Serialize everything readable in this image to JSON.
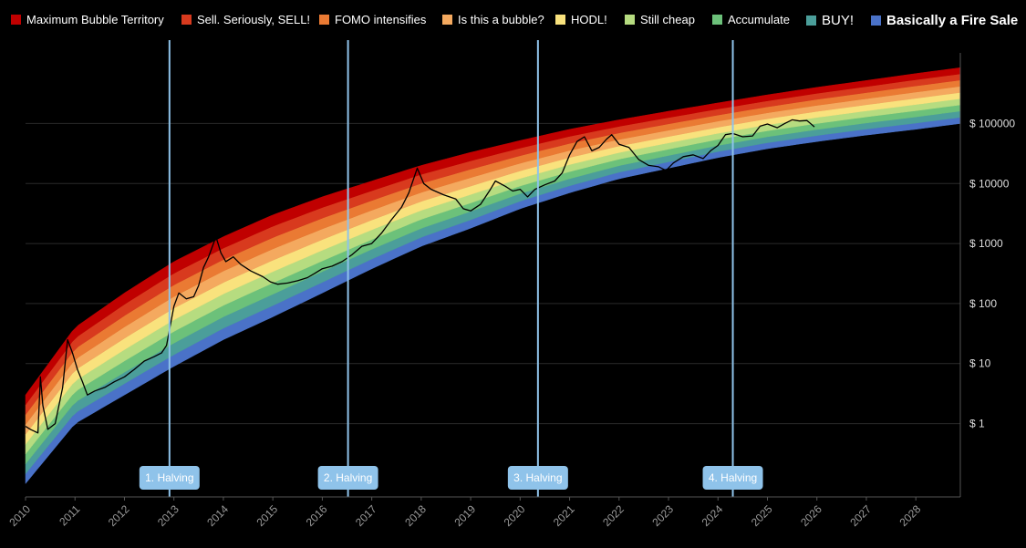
{
  "legend": [
    {
      "label": "Maximum Bubble Territory",
      "color": "#c00000"
    },
    {
      "label": "Sell. Seriously, SELL!",
      "color": "#d83a1e"
    },
    {
      "label": "FOMO intensifies",
      "color": "#ea7a33"
    },
    {
      "label": "Is this a bubble?",
      "color": "#f4a95f"
    },
    {
      "label": "HODL!",
      "color": "#f9e27d"
    },
    {
      "label": "Still cheap",
      "color": "#b6dc80"
    },
    {
      "label": "Accumulate",
      "color": "#6cc17a"
    },
    {
      "label": "BUY!",
      "color": "#4b9e9a"
    },
    {
      "label": "Basically a Fire Sale",
      "color": "#4a72c8"
    }
  ],
  "chart_data": {
    "type": "area",
    "y_scale": "log",
    "y_ticks": [
      {
        "value": 1,
        "label": "$ 1"
      },
      {
        "value": 10,
        "label": "$ 10"
      },
      {
        "value": 100,
        "label": "$ 100"
      },
      {
        "value": 1000,
        "label": "$ 1000"
      },
      {
        "value": 10000,
        "label": "$ 10000"
      },
      {
        "value": 100000,
        "label": "$ 100000"
      }
    ],
    "x_ticks": [
      "2010",
      "2011",
      "2012",
      "2013",
      "2014",
      "2015",
      "2016",
      "2017",
      "2018",
      "2019",
      "2020",
      "2021",
      "2022",
      "2023",
      "2024",
      "2025",
      "2026",
      "2027",
      "2028"
    ],
    "x_range": [
      2010,
      2028.9
    ],
    "y_range": [
      0.06,
      1500000
    ],
    "bands": [
      {
        "name": "Basically a Fire Sale",
        "color": "#4a72c8"
      },
      {
        "name": "BUY!",
        "color": "#4b9e9a"
      },
      {
        "name": "Accumulate",
        "color": "#6cc17a"
      },
      {
        "name": "Still cheap",
        "color": "#b6dc80"
      },
      {
        "name": "HODL!",
        "color": "#f9e27d"
      },
      {
        "name": "Is this a bubble?",
        "color": "#f4a95f"
      },
      {
        "name": "FOMO intensifies",
        "color": "#ea7a33"
      },
      {
        "name": "Sell. Seriously, SELL!",
        "color": "#d83a1e"
      },
      {
        "name": "Maximum Bubble Territory",
        "color": "#c00000"
      }
    ],
    "band_bottom_points": [
      [
        2010.0,
        0.1
      ],
      [
        2011.0,
        1.0
      ],
      [
        2012.0,
        3.0
      ],
      [
        2013.0,
        9.0
      ],
      [
        2014.0,
        25
      ],
      [
        2015.0,
        60
      ],
      [
        2016.0,
        150
      ],
      [
        2017.0,
        380
      ],
      [
        2018.0,
        900
      ],
      [
        2019.0,
        1800
      ],
      [
        2020.0,
        3800
      ],
      [
        2021.0,
        7000
      ],
      [
        2022.0,
        12000
      ],
      [
        2023.0,
        18000
      ],
      [
        2024.0,
        27000
      ],
      [
        2025.0,
        38000
      ],
      [
        2026.0,
        50000
      ],
      [
        2027.0,
        64000
      ],
      [
        2028.0,
        80000
      ],
      [
        2028.9,
        100000
      ]
    ],
    "band_top_points": [
      [
        2010.0,
        3.0
      ],
      [
        2011.0,
        40
      ],
      [
        2012.0,
        150
      ],
      [
        2013.0,
        500
      ],
      [
        2014.0,
        1300
      ],
      [
        2015.0,
        3000
      ],
      [
        2016.0,
        6000
      ],
      [
        2017.0,
        11000
      ],
      [
        2018.0,
        20000
      ],
      [
        2019.0,
        33000
      ],
      [
        2020.0,
        52000
      ],
      [
        2021.0,
        80000
      ],
      [
        2022.0,
        115000
      ],
      [
        2023.0,
        160000
      ],
      [
        2024.0,
        220000
      ],
      [
        2025.0,
        300000
      ],
      [
        2026.0,
        400000
      ],
      [
        2027.0,
        520000
      ],
      [
        2028.0,
        680000
      ],
      [
        2028.9,
        850000
      ]
    ],
    "price_series": {
      "color": "#000000",
      "points": [
        [
          2010.0,
          0.9
        ],
        [
          2010.1,
          0.8
        ],
        [
          2010.25,
          0.7
        ],
        [
          2010.3,
          6
        ],
        [
          2010.35,
          2
        ],
        [
          2010.45,
          0.8
        ],
        [
          2010.6,
          1.0
        ],
        [
          2010.75,
          4
        ],
        [
          2010.85,
          25
        ],
        [
          2010.95,
          15
        ],
        [
          2011.05,
          8
        ],
        [
          2011.15,
          5
        ],
        [
          2011.25,
          3
        ],
        [
          2011.4,
          3.5
        ],
        [
          2011.6,
          4
        ],
        [
          2011.8,
          5
        ],
        [
          2012.0,
          6
        ],
        [
          2012.2,
          8
        ],
        [
          2012.4,
          11
        ],
        [
          2012.6,
          13
        ],
        [
          2012.75,
          15
        ],
        [
          2012.85,
          20
        ],
        [
          2013.0,
          90
        ],
        [
          2013.1,
          150
        ],
        [
          2013.25,
          120
        ],
        [
          2013.4,
          130
        ],
        [
          2013.5,
          200
        ],
        [
          2013.6,
          400
        ],
        [
          2013.7,
          600
        ],
        [
          2013.85,
          1300
        ],
        [
          2013.95,
          700
        ],
        [
          2014.05,
          500
        ],
        [
          2014.2,
          600
        ],
        [
          2014.35,
          450
        ],
        [
          2014.55,
          350
        ],
        [
          2014.8,
          280
        ],
        [
          2014.95,
          230
        ],
        [
          2015.1,
          210
        ],
        [
          2015.3,
          220
        ],
        [
          2015.5,
          240
        ],
        [
          2015.7,
          270
        ],
        [
          2015.85,
          320
        ],
        [
          2016.0,
          380
        ],
        [
          2016.2,
          420
        ],
        [
          2016.4,
          500
        ],
        [
          2016.6,
          650
        ],
        [
          2016.8,
          900
        ],
        [
          2017.0,
          1000
        ],
        [
          2017.2,
          1500
        ],
        [
          2017.4,
          2500
        ],
        [
          2017.6,
          4000
        ],
        [
          2017.75,
          7000
        ],
        [
          2017.92,
          18000
        ],
        [
          2018.05,
          10000
        ],
        [
          2018.2,
          8000
        ],
        [
          2018.45,
          6500
        ],
        [
          2018.7,
          5500
        ],
        [
          2018.85,
          3800
        ],
        [
          2019.0,
          3500
        ],
        [
          2019.2,
          4500
        ],
        [
          2019.4,
          8000
        ],
        [
          2019.5,
          11000
        ],
        [
          2019.7,
          9000
        ],
        [
          2019.85,
          7500
        ],
        [
          2020.0,
          8000
        ],
        [
          2020.15,
          6000
        ],
        [
          2020.3,
          8000
        ],
        [
          2020.5,
          9500
        ],
        [
          2020.7,
          11000
        ],
        [
          2020.85,
          15000
        ],
        [
          2021.0,
          30000
        ],
        [
          2021.15,
          50000
        ],
        [
          2021.3,
          60000
        ],
        [
          2021.45,
          35000
        ],
        [
          2021.6,
          40000
        ],
        [
          2021.75,
          55000
        ],
        [
          2021.85,
          65000
        ],
        [
          2022.0,
          45000
        ],
        [
          2022.2,
          40000
        ],
        [
          2022.4,
          25000
        ],
        [
          2022.6,
          20000
        ],
        [
          2022.8,
          19000
        ],
        [
          2022.95,
          16500
        ],
        [
          2023.1,
          22000
        ],
        [
          2023.3,
          28000
        ],
        [
          2023.5,
          30000
        ],
        [
          2023.7,
          26000
        ],
        [
          2023.85,
          35000
        ],
        [
          2024.0,
          43000
        ],
        [
          2024.15,
          65000
        ],
        [
          2024.3,
          68000
        ],
        [
          2024.5,
          60000
        ],
        [
          2024.7,
          62000
        ],
        [
          2024.85,
          90000
        ],
        [
          2025.0,
          98000
        ],
        [
          2025.2,
          85000
        ],
        [
          2025.35,
          100000
        ],
        [
          2025.5,
          115000
        ],
        [
          2025.65,
          110000
        ],
        [
          2025.8,
          112000
        ],
        [
          2025.95,
          88000
        ]
      ]
    },
    "halvings": [
      {
        "label": "1. Halving",
        "x": 2012.91
      },
      {
        "label": "2. Halving",
        "x": 2016.52
      },
      {
        "label": "3. Halving",
        "x": 2020.36
      },
      {
        "label": "4. Halving",
        "x": 2024.3
      }
    ],
    "line_colors": {
      "halving": "#8fc3ea",
      "grid": "#2a2a2a",
      "axis": "#555555"
    }
  }
}
